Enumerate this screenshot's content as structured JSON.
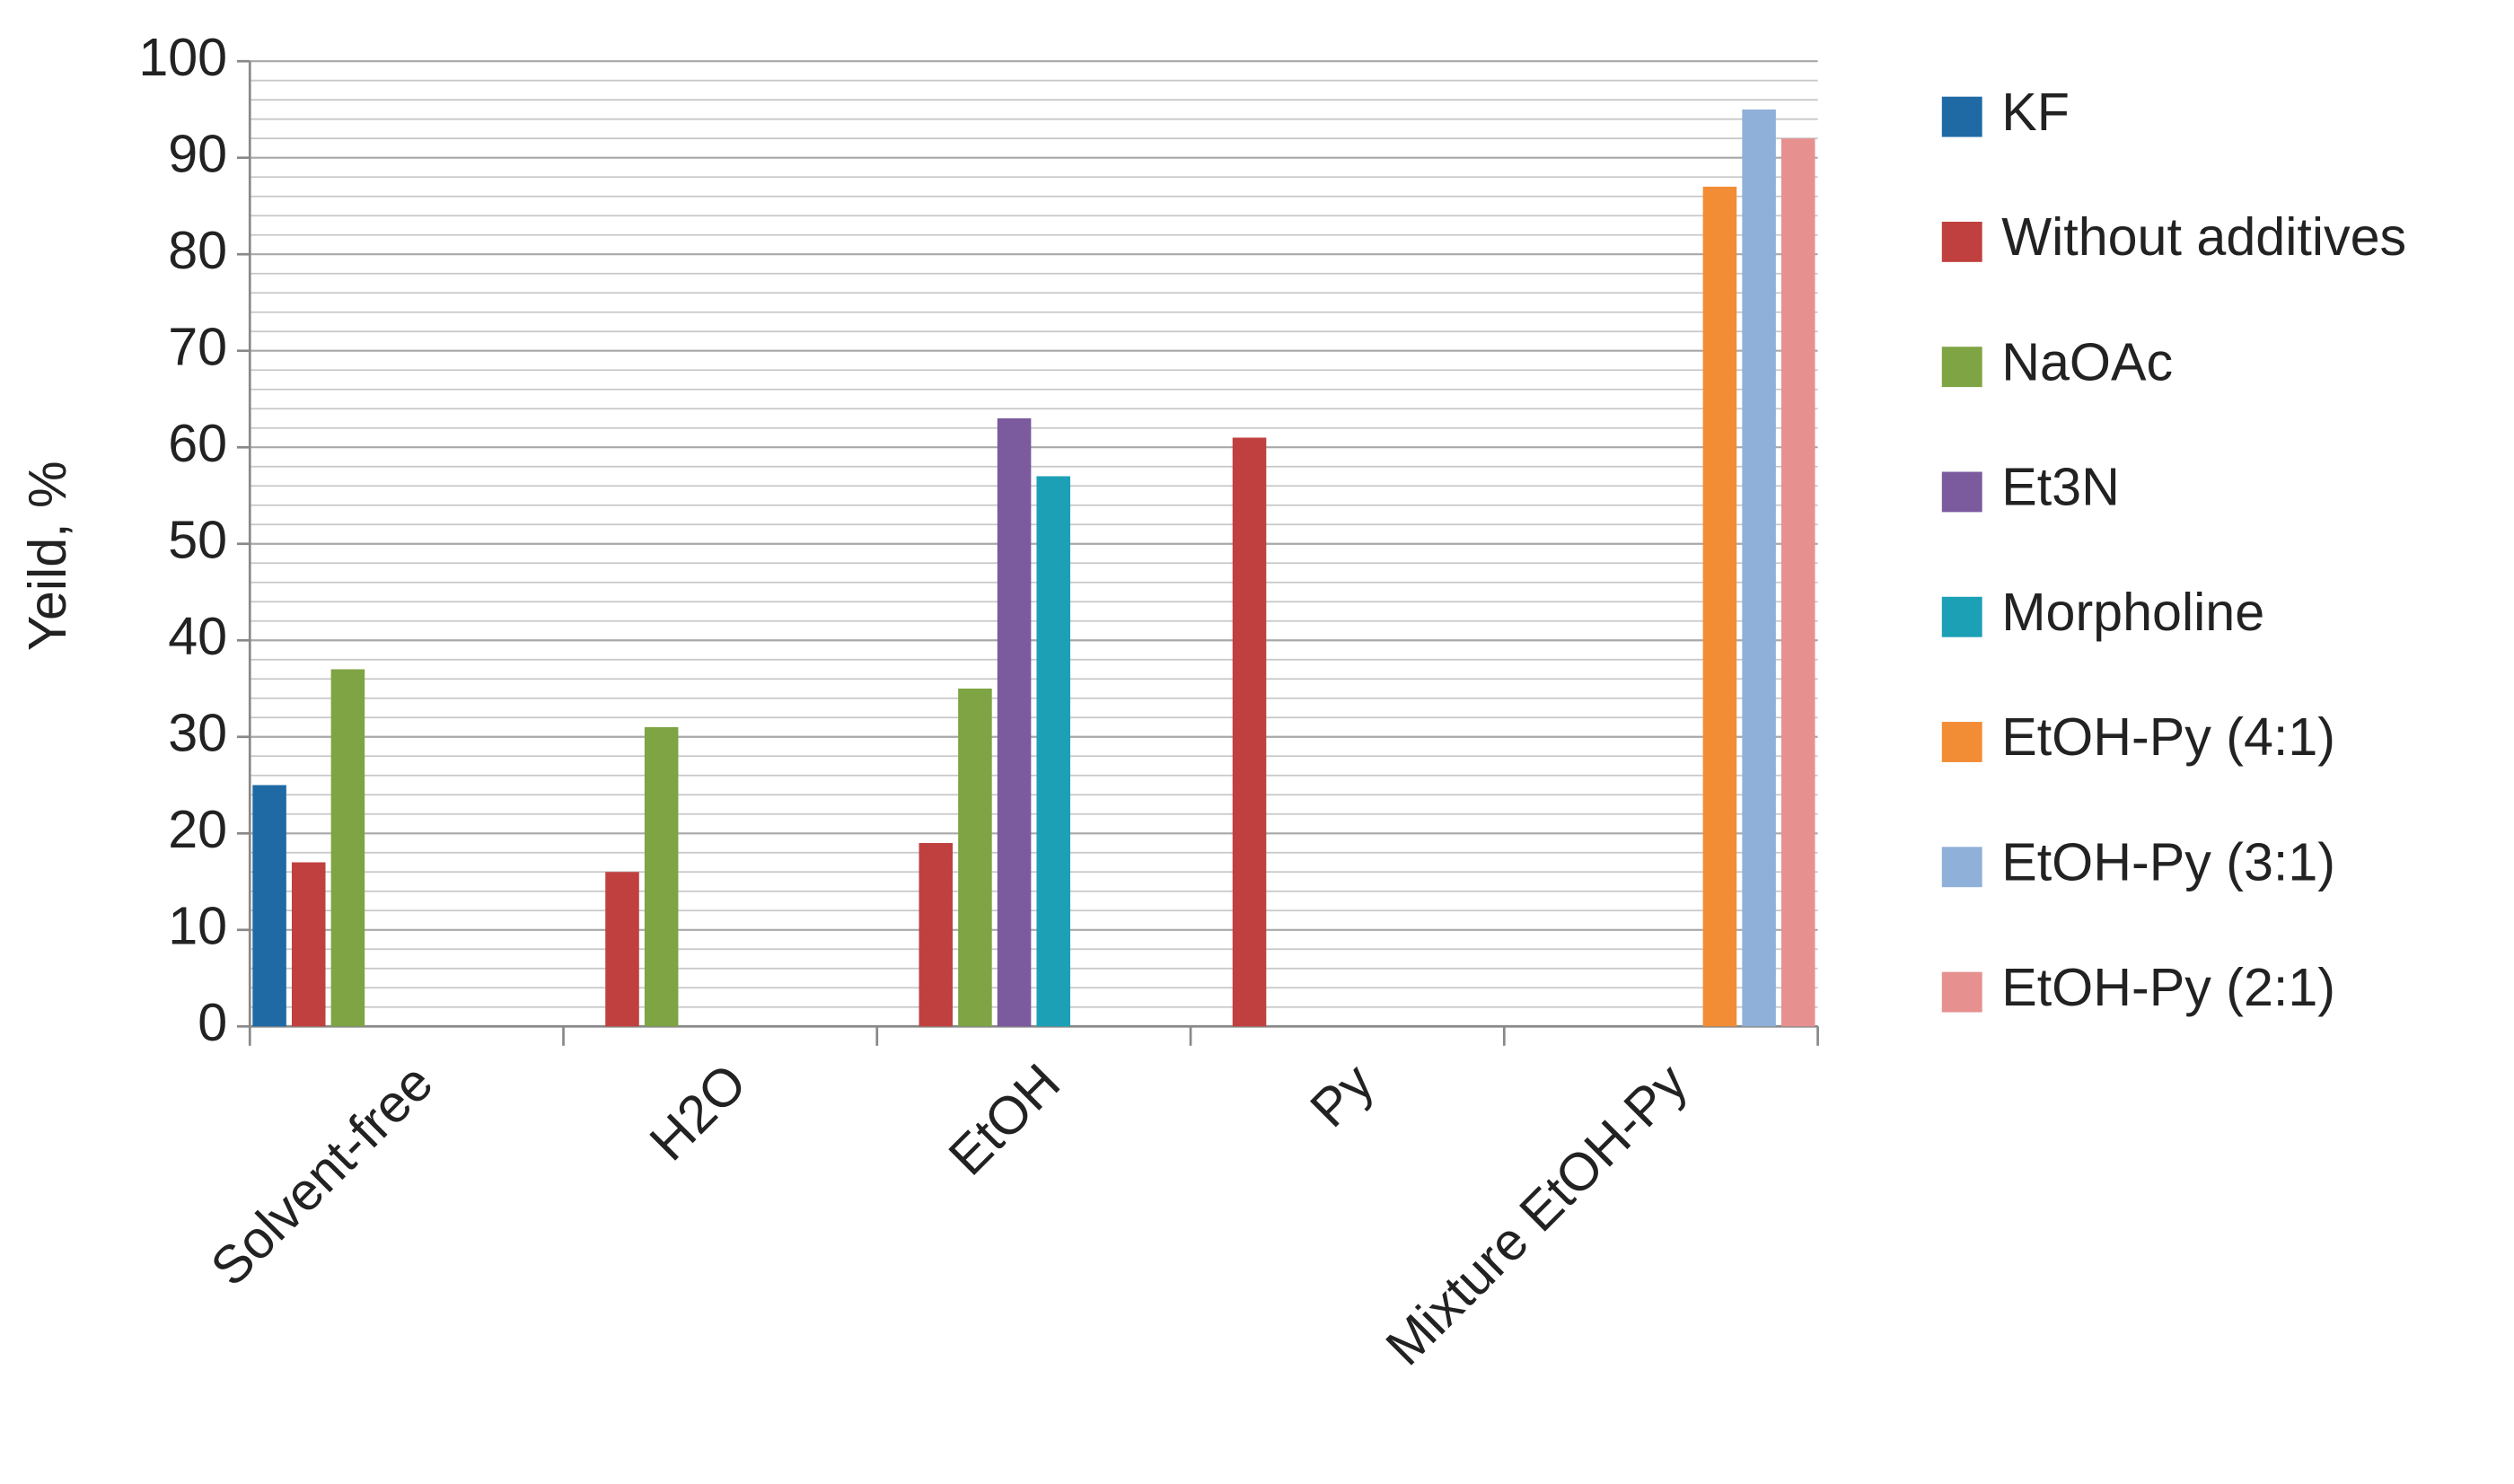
{
  "chart_data": {
    "type": "bar",
    "y_label": "Yeild, %",
    "categories": [
      "Solvent-free",
      "H2O",
      "EtOH",
      "Py",
      "Mixture EtOH-Py"
    ],
    "series": [
      {
        "name": "KF",
        "color": "#1f6aa5",
        "values": [
          25,
          null,
          null,
          null,
          null
        ]
      },
      {
        "name": "Without additives",
        "color": "#c0403f",
        "values": [
          17,
          16,
          19,
          61,
          null
        ]
      },
      {
        "name": "NaOAc",
        "color": "#7ea443",
        "values": [
          37,
          31,
          35,
          null,
          null
        ]
      },
      {
        "name": "Et3N",
        "color": "#7b5a9e",
        "values": [
          null,
          null,
          63,
          null,
          null
        ]
      },
      {
        "name": "Morpholine",
        "color": "#1ba0b6",
        "values": [
          null,
          null,
          57,
          null,
          null
        ]
      },
      {
        "name": "EtOH-Py (4:1)",
        "color": "#f28c35",
        "values": [
          null,
          null,
          null,
          null,
          87
        ]
      },
      {
        "name": "EtOH-Py (3:1)",
        "color": "#8fb0d9",
        "values": [
          null,
          null,
          null,
          null,
          95
        ]
      },
      {
        "name": "EtOH-Py (2:1)",
        "color": "#e79090",
        "values": [
          null,
          null,
          null,
          null,
          92
        ]
      }
    ],
    "ylim": [
      0,
      100
    ],
    "yticks": [
      0,
      10,
      20,
      30,
      40,
      50,
      60,
      70,
      80,
      90,
      100
    ],
    "grid": true,
    "legend": "right"
  }
}
